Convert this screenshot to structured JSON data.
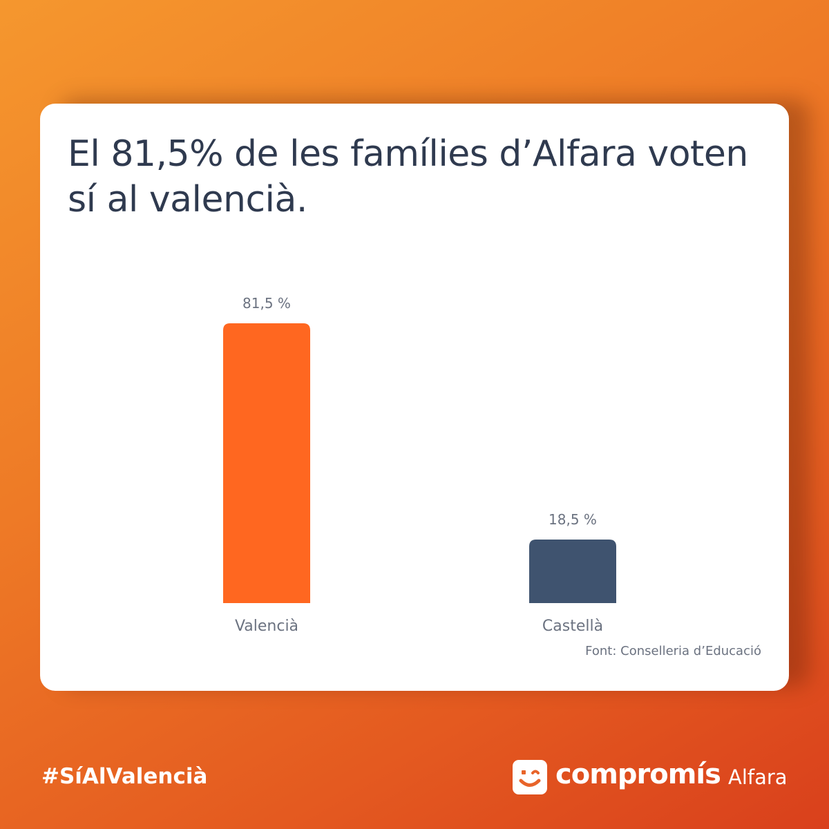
{
  "card": {
    "title": "El 81,5% de les famílies d’Alfara voten sí al valencià.",
    "source": "Font: Conselleria d’Educació"
  },
  "chart_data": {
    "type": "bar",
    "categories": [
      "Valencià",
      "Castellà"
    ],
    "values": [
      81.5,
      18.5
    ],
    "value_labels": [
      "81,5 %",
      "18,5 %"
    ],
    "colors": [
      "#ff6720",
      "#3f536f"
    ],
    "title": "El 81,5% de les famílies d’Alfara voten sí al valencià.",
    "xlabel": "",
    "ylabel": "",
    "ylim": [
      0,
      100
    ],
    "grid": false,
    "legend": "none"
  },
  "footer": {
    "hashtag": "#SíAlValencià",
    "logo_text": "compromís",
    "logo_place": "Alfara",
    "logo_icon": "smiley-wink-icon"
  }
}
